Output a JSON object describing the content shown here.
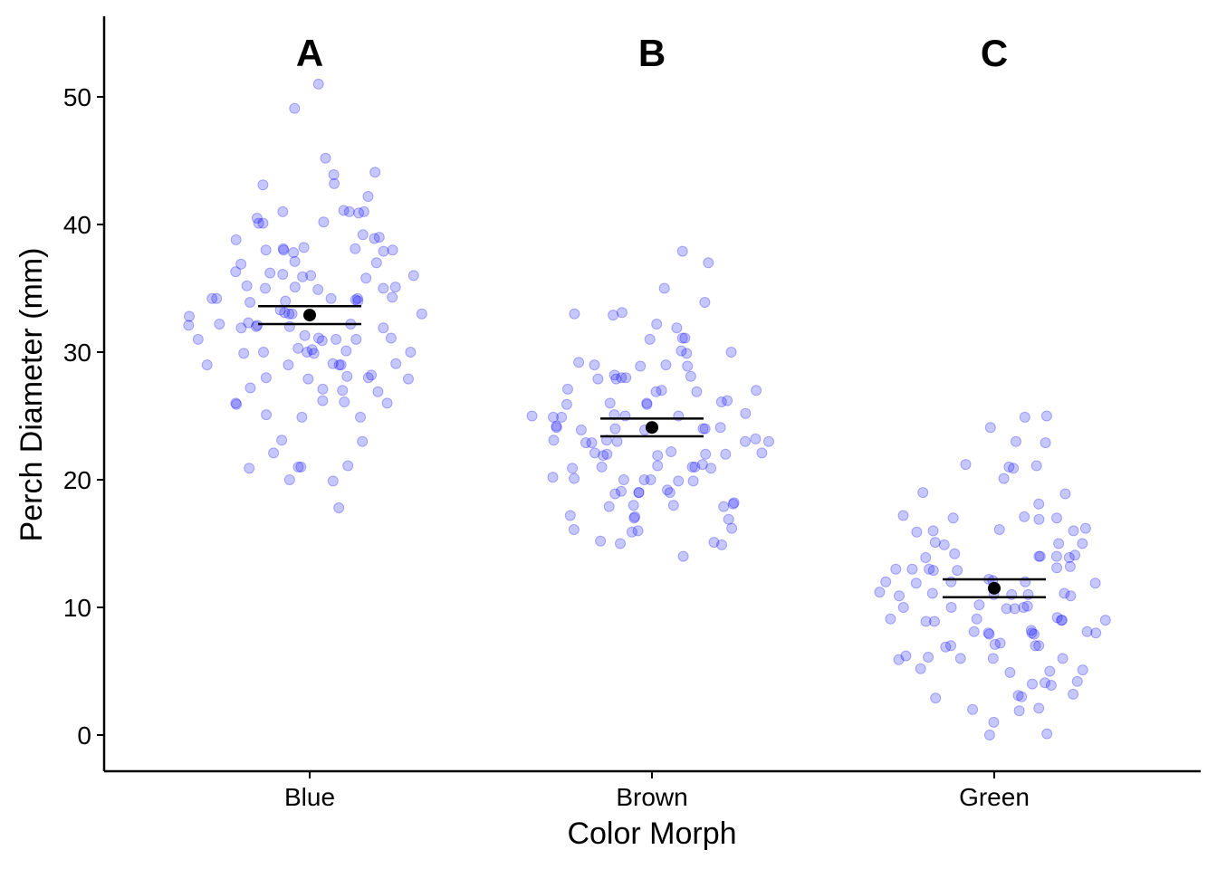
{
  "chart_data": {
    "type": "scatter",
    "subtype": "jittered-strip-with-mean-and-error-bars",
    "title": "",
    "xlabel": "Color Morph",
    "ylabel": "Perch Diameter (mm)",
    "categories": [
      "Blue",
      "Brown",
      "Green"
    ],
    "significance_letters": [
      "A",
      "B",
      "C"
    ],
    "ylim": [
      -3,
      56
    ],
    "yticks": [
      0,
      10,
      20,
      30,
      40,
      50
    ],
    "grid": false,
    "legend": "none",
    "point_color": "#0000ff",
    "point_opacity": 0.22,
    "summary_color": "#000000",
    "groups": [
      {
        "name": "Blue",
        "mean": 32.9,
        "error_low": 32.2,
        "error_high": 33.6,
        "values": [
          51,
          49.1,
          45.2,
          44.1,
          43.9,
          43.2,
          43.1,
          42.2,
          41.1,
          41,
          41,
          41,
          40.9,
          40.5,
          40.2,
          40.1,
          40.1,
          39.2,
          39,
          38.9,
          38.8,
          38.2,
          38.1,
          38.1,
          38,
          38,
          38,
          37.9,
          37.8,
          37.1,
          37,
          36.9,
          36.3,
          36.2,
          36.1,
          36,
          36,
          35.9,
          35.8,
          35.2,
          35.1,
          35.1,
          35,
          35,
          34.9,
          34.3,
          34.2,
          34.2,
          34.2,
          34.2,
          34.1,
          34,
          34,
          33.9,
          33.3,
          33.1,
          33,
          33,
          33,
          32.8,
          32.3,
          32.2,
          32.2,
          32.1,
          32.1,
          32,
          32,
          31.9,
          31.9,
          31.3,
          31.1,
          31.1,
          31,
          31,
          31,
          30.9,
          30.3,
          30.2,
          30.1,
          30,
          30,
          30,
          29.9,
          29.9,
          29.1,
          29.1,
          29,
          29,
          29,
          29,
          28.2,
          28.1,
          28,
          28,
          27.9,
          27.9,
          27.2,
          27.1,
          27,
          26.9,
          26.2,
          26.1,
          26,
          26,
          25.9,
          25.1,
          24.9,
          24.9,
          23.1,
          23,
          22.1,
          21.1,
          21,
          21,
          20.9,
          20,
          19.9,
          17.8
        ]
      },
      {
        "name": "Brown",
        "mean": 24.1,
        "error_low": 23.4,
        "error_high": 24.8,
        "values": [
          37.9,
          37,
          35,
          33.9,
          33.1,
          33,
          32.9,
          32.2,
          31.9,
          31.1,
          31.1,
          31,
          30.1,
          30,
          29.9,
          29.2,
          29,
          29,
          28.9,
          28.9,
          28.2,
          28.1,
          28,
          28,
          27.9,
          27.9,
          27.1,
          27,
          27,
          26.9,
          26.9,
          26.2,
          26.1,
          26,
          26,
          25.9,
          25.9,
          25.2,
          25.1,
          25,
          25,
          25,
          24.9,
          24.9,
          24.2,
          24.1,
          24.1,
          24,
          24,
          24,
          23.9,
          23.9,
          23.2,
          23.1,
          23.1,
          23,
          23,
          23,
          22.9,
          22.9,
          22.2,
          22.1,
          22.1,
          22,
          22,
          22,
          21.9,
          21.9,
          21.2,
          21.1,
          21,
          21,
          21,
          20.9,
          20.9,
          20.2,
          20.1,
          20,
          20,
          20,
          19.9,
          19.9,
          19.2,
          19.1,
          19,
          19,
          19,
          18.9,
          18.2,
          18.1,
          18,
          18,
          17.9,
          17.9,
          17.2,
          17.1,
          17,
          16.9,
          16.2,
          16.1,
          16,
          15.9,
          15.2,
          15.1,
          15,
          14.9,
          14
        ]
      },
      {
        "name": "Green",
        "mean": 11.5,
        "error_low": 10.8,
        "error_high": 12.2,
        "values": [
          25,
          24.9,
          24.1,
          23,
          22.9,
          21.2,
          21.1,
          21,
          20.9,
          20.1,
          19,
          18.9,
          18.1,
          17.2,
          17.1,
          17,
          17,
          16.9,
          16.2,
          16.1,
          16,
          16,
          15.9,
          15.1,
          15,
          15,
          14.9,
          14.2,
          14.1,
          14,
          14,
          14,
          13.9,
          13.9,
          13.2,
          13.1,
          13,
          13,
          13,
          12.9,
          12.9,
          12.2,
          12.1,
          12,
          12,
          12,
          11.9,
          11.9,
          11.2,
          11.1,
          11.1,
          11,
          11,
          11,
          10.9,
          10.9,
          10.2,
          10.1,
          10,
          10,
          10,
          9.9,
          9.9,
          9.2,
          9.1,
          9.1,
          9,
          9,
          9,
          8.9,
          8.9,
          8.2,
          8.1,
          8.1,
          8,
          8,
          8,
          7.9,
          7.9,
          7.2,
          7.1,
          7,
          7,
          7,
          6.9,
          6.2,
          6.1,
          6,
          6,
          6,
          5.9,
          5.2,
          5.1,
          5,
          4.9,
          4.2,
          4.1,
          4,
          3.9,
          3.2,
          3.1,
          3,
          2.9,
          2.1,
          2,
          1.9,
          1,
          0.1,
          0
        ]
      }
    ]
  }
}
